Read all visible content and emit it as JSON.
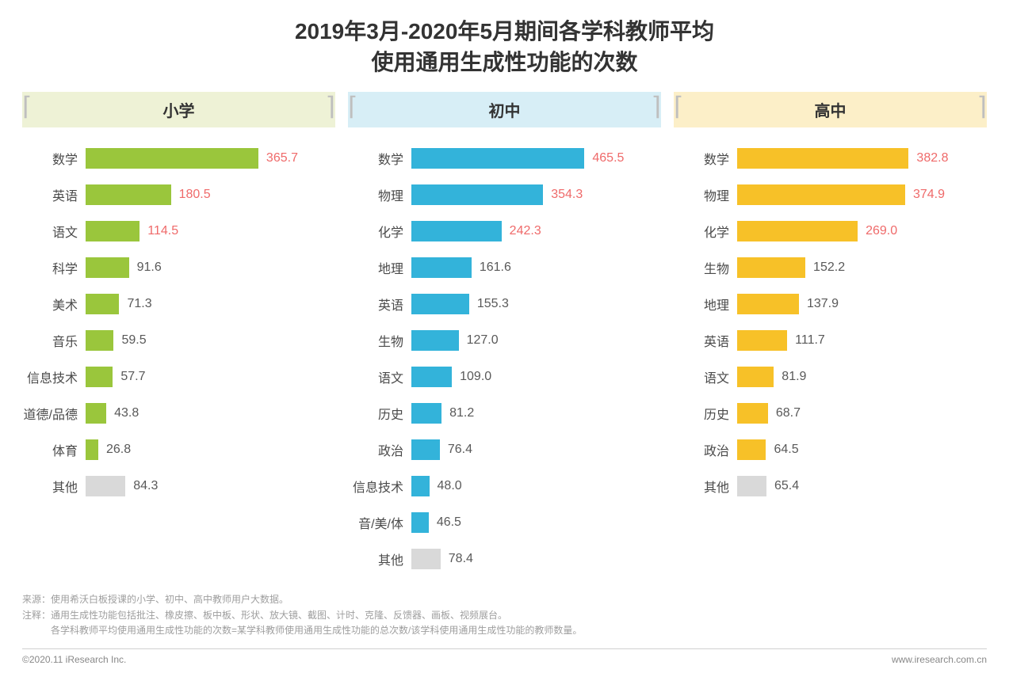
{
  "title_line1": "2019年3月-2020年5月期间各学科教师平均",
  "title_line2": "使用通用生成性功能的次数",
  "title_color": "#333333",
  "title_fontsize": 28,
  "background_color": "#ffffff",
  "value_fontsize": 16,
  "label_fontsize": 16,
  "highlight_value_color": "#ef6a6a",
  "normal_value_color": "#595959",
  "other_bar_color": "#d9d9d9",
  "bracket_color": "#bfbfbf",
  "panels": [
    {
      "name": "小学",
      "header_bg": "#eef2d6",
      "bar_color": "#9ac63c",
      "x_max": 370,
      "highlight_top_n": 3,
      "items": [
        {
          "label": "数学",
          "value": 365.7
        },
        {
          "label": "英语",
          "value": 180.5
        },
        {
          "label": "语文",
          "value": 114.5
        },
        {
          "label": "科学",
          "value": 91.6
        },
        {
          "label": "美术",
          "value": 71.3
        },
        {
          "label": "音乐",
          "value": 59.5
        },
        {
          "label": "信息技术",
          "value": 57.7
        },
        {
          "label": "道德/品德",
          "value": 43.8
        },
        {
          "label": "体育",
          "value": 26.8
        },
        {
          "label": "其他",
          "value": 84.3,
          "is_other": true
        }
      ]
    },
    {
      "name": "初中",
      "header_bg": "#d7eef6",
      "bar_color": "#33b3da",
      "x_max": 470,
      "highlight_top_n": 3,
      "items": [
        {
          "label": "数学",
          "value": 465.5
        },
        {
          "label": "物理",
          "value": 354.3
        },
        {
          "label": "化学",
          "value": 242.3
        },
        {
          "label": "地理",
          "value": 161.6
        },
        {
          "label": "英语",
          "value": 155.3
        },
        {
          "label": "生物",
          "value": 127.0
        },
        {
          "label": "语文",
          "value": 109.0
        },
        {
          "label": "历史",
          "value": 81.2
        },
        {
          "label": "政治",
          "value": 76.4
        },
        {
          "label": "信息技术",
          "value": 48.0
        },
        {
          "label": "音/美/体",
          "value": 46.5
        },
        {
          "label": "其他",
          "value": 78.4,
          "is_other": true
        }
      ]
    },
    {
      "name": "高中",
      "header_bg": "#fcefc8",
      "bar_color": "#f7c128",
      "x_max": 390,
      "highlight_top_n": 3,
      "items": [
        {
          "label": "数学",
          "value": 382.8
        },
        {
          "label": "物理",
          "value": 374.9
        },
        {
          "label": "化学",
          "value": 269.0
        },
        {
          "label": "生物",
          "value": 152.2
        },
        {
          "label": "地理",
          "value": 137.9
        },
        {
          "label": "英语",
          "value": 111.7
        },
        {
          "label": "语文",
          "value": 81.9
        },
        {
          "label": "历史",
          "value": 68.7
        },
        {
          "label": "政治",
          "value": 64.5
        },
        {
          "label": "其他",
          "value": 65.4,
          "is_other": true
        }
      ]
    }
  ],
  "footnote_source_label": "来源：",
  "footnote_source_text": "使用希沃白板授课的小学、初中、高中教师用户大数据。",
  "footnote_note_label": "注释：",
  "footnote_note_line1": "通用生成性功能包括批注、橡皮擦、板中板、形状、放大镜、截图、计时、克隆、反馈器、画板、视频展台。",
  "footnote_note_line2": "各学科教师平均使用通用生成性功能的次数=某学科教师使用通用生成性功能的总次数/该学科使用通用生成性功能的教师数量。",
  "credit_left": "©2020.11  iResearch Inc.",
  "credit_right": "www.iresearch.com.cn",
  "value_decimals": 1
}
